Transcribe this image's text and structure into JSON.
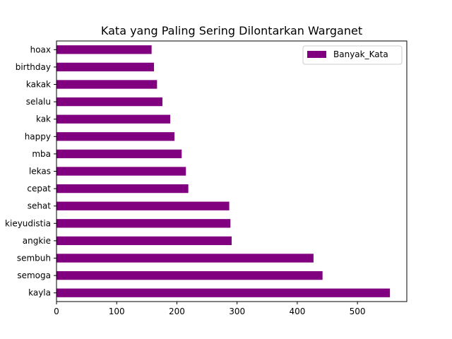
{
  "chart_data": {
    "type": "bar",
    "orientation": "horizontal",
    "title": "Kata yang Paling Sering Dilontarkan Warganet",
    "xlabel": "",
    "ylabel": "",
    "categories": [
      "kayla",
      "semoga",
      "sembuh",
      "angkie",
      "kieyudistia",
      "sehat",
      "cepat",
      "lekas",
      "mba",
      "happy",
      "kak",
      "selalu",
      "kakak",
      "birthday",
      "hoax"
    ],
    "series": [
      {
        "name": "Banyak_Kata",
        "color": "#800080",
        "values": [
          554,
          442,
          427,
          291,
          289,
          287,
          219,
          215,
          208,
          196,
          189,
          176,
          167,
          162,
          158
        ]
      }
    ],
    "xlim": [
      0,
      582
    ],
    "xticks": [
      0,
      100,
      200,
      300,
      400,
      500
    ],
    "grid": false,
    "legend_position": "top-right"
  }
}
